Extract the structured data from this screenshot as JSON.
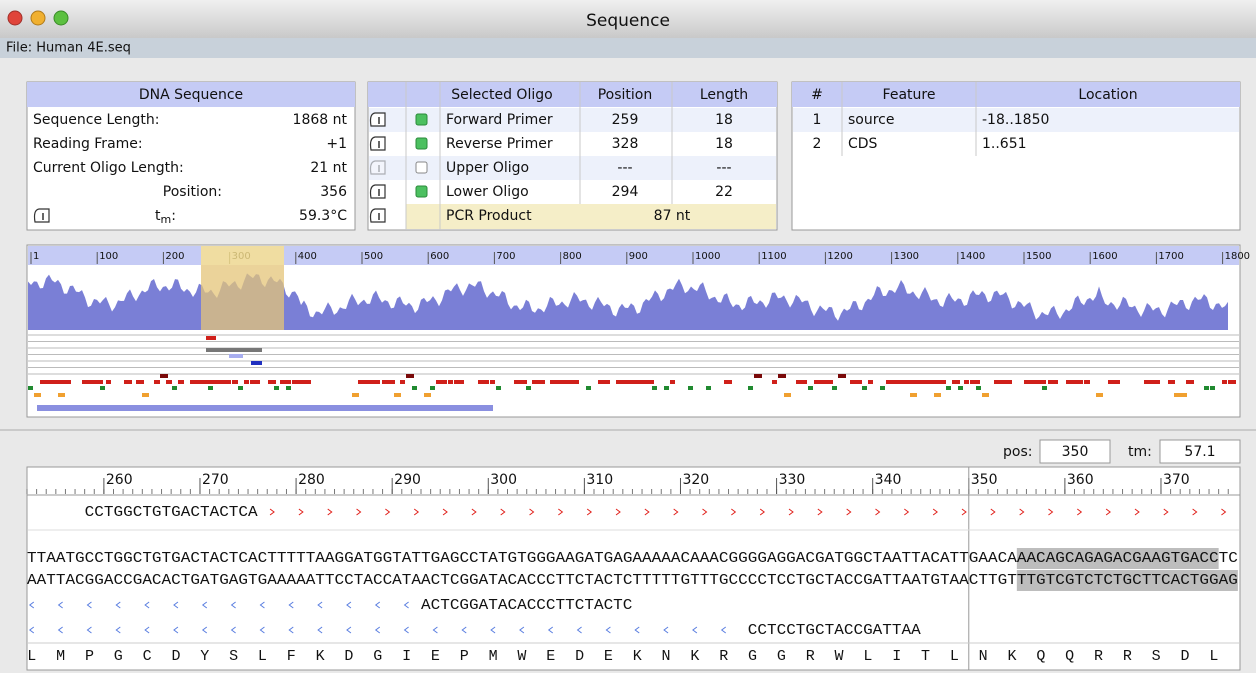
{
  "window": {
    "title": "Sequence",
    "file": "File: Human 4E.seq"
  },
  "dna_sequence": {
    "header": "DNA Sequence",
    "rows": [
      {
        "label": "Sequence Length:",
        "value": "1868 nt"
      },
      {
        "label": "Reading Frame:",
        "value": "+1"
      },
      {
        "label": "Current Oligo Length:",
        "value": "21 nt"
      },
      {
        "label": "Position:",
        "value": "356"
      }
    ],
    "tm": {
      "label": "t",
      "sub": "m",
      "colon": ":",
      "value": "59.3°C"
    }
  },
  "oligos": {
    "headers": [
      "Selected Oligo",
      "Position",
      "Length"
    ],
    "rows": [
      [
        "Forward Primer",
        "259",
        "18"
      ],
      [
        "Reverse Primer",
        "328",
        "18"
      ],
      [
        "Upper Oligo",
        "---",
        "---"
      ],
      [
        "Lower Oligo",
        "294",
        "22"
      ]
    ],
    "product": {
      "label": "PCR Product",
      "value": "87 nt"
    }
  },
  "features": {
    "headers": [
      "#",
      "Feature",
      "Location"
    ],
    "rows": [
      [
        "1",
        "source",
        "-18..1850"
      ],
      [
        "2",
        "CDS",
        "1..651"
      ]
    ]
  },
  "map_ruler": [
    "1",
    "100",
    "200",
    "300",
    "400",
    "500",
    "600",
    "700",
    "800",
    "900",
    "1000",
    "1100",
    "1200",
    "1300",
    "1400",
    "1500",
    "1600",
    "1700",
    "1800"
  ],
  "cursor": {
    "pos_label": "pos:",
    "pos": "350",
    "tm_label": "tm:",
    "tm": "57.1"
  },
  "sequence_ruler": [
    "260",
    "270",
    "280",
    "290",
    "300",
    "310",
    "320",
    "330",
    "340",
    "350",
    "360",
    "370"
  ],
  "sequence": {
    "upper_oligo": "CCTGGCTGTGACTACTCA",
    "top": [
      "TTAATGCCTGGCTGTGACTACTCACTTTTTAAGGATGGTATTGAGCCTATGTGGGAAGATGAGAAAAACAAACGGGGAGGACGATGGCTAATTACATTGAACA",
      "AACAGCAGAGACGAAGTGACC",
      "TC"
    ],
    "bottom": [
      "AATTACGGACCGACACTGATGAGTGAAAAATTCCTACCATAACTCGGATACACCCTTCTACTCTTTTTGTTTGCCCCTCCTGCTACCGATTAATGTAACTTGT",
      "TTGTCGTCTCTGCTTCACTGG",
      "AG"
    ],
    "lower_oligo": "ACTCGGATACACCCTTCTACTC",
    "lower_oligo_2": "CCTCCTGCTACCGATTAA",
    "translation": {
      "residues": [
        "L",
        "M",
        "P",
        "G",
        "C",
        "D",
        "Y",
        "S",
        "L",
        "F",
        "K",
        "D",
        "G",
        "I",
        "E",
        "P",
        "M",
        "W",
        "E",
        "D",
        "E",
        "K",
        "N",
        "K",
        "R",
        "G",
        "G",
        "R",
        "W",
        "L",
        "I",
        "T",
        "L",
        "N",
        "K",
        "Q",
        "Q",
        "R",
        "R",
        "S",
        "D",
        "L"
      ],
      "colors": [
        "#d8261c",
        "#2438b8",
        "#2438b8",
        "#2438b8",
        "#2438b8",
        "#2438b8",
        "#2438b8",
        "#d8261c",
        "#2438b8",
        "#2438b8",
        "#2438b8",
        "#2438b8",
        "#d020c8",
        "#2438b8",
        "#2438b8",
        "#2438b8",
        "#2438b8",
        "#2438b8",
        "#2438b8",
        "#2438b8",
        "#2438b8",
        "#2438b8",
        "#2438b8",
        "#2438b8",
        "#2438b8",
        "#2438b8",
        "#2438b8",
        "#d8261c",
        "#2438b8",
        "#f0a020",
        "#2438b8",
        "#2438b8",
        "#d020c8",
        "#2438b8",
        "#2438b8",
        "#2438b8",
        "#2438b8",
        "#d020c8",
        "#d8261c",
        "#d020c8",
        "#2438b8",
        "#2438b8"
      ]
    }
  }
}
